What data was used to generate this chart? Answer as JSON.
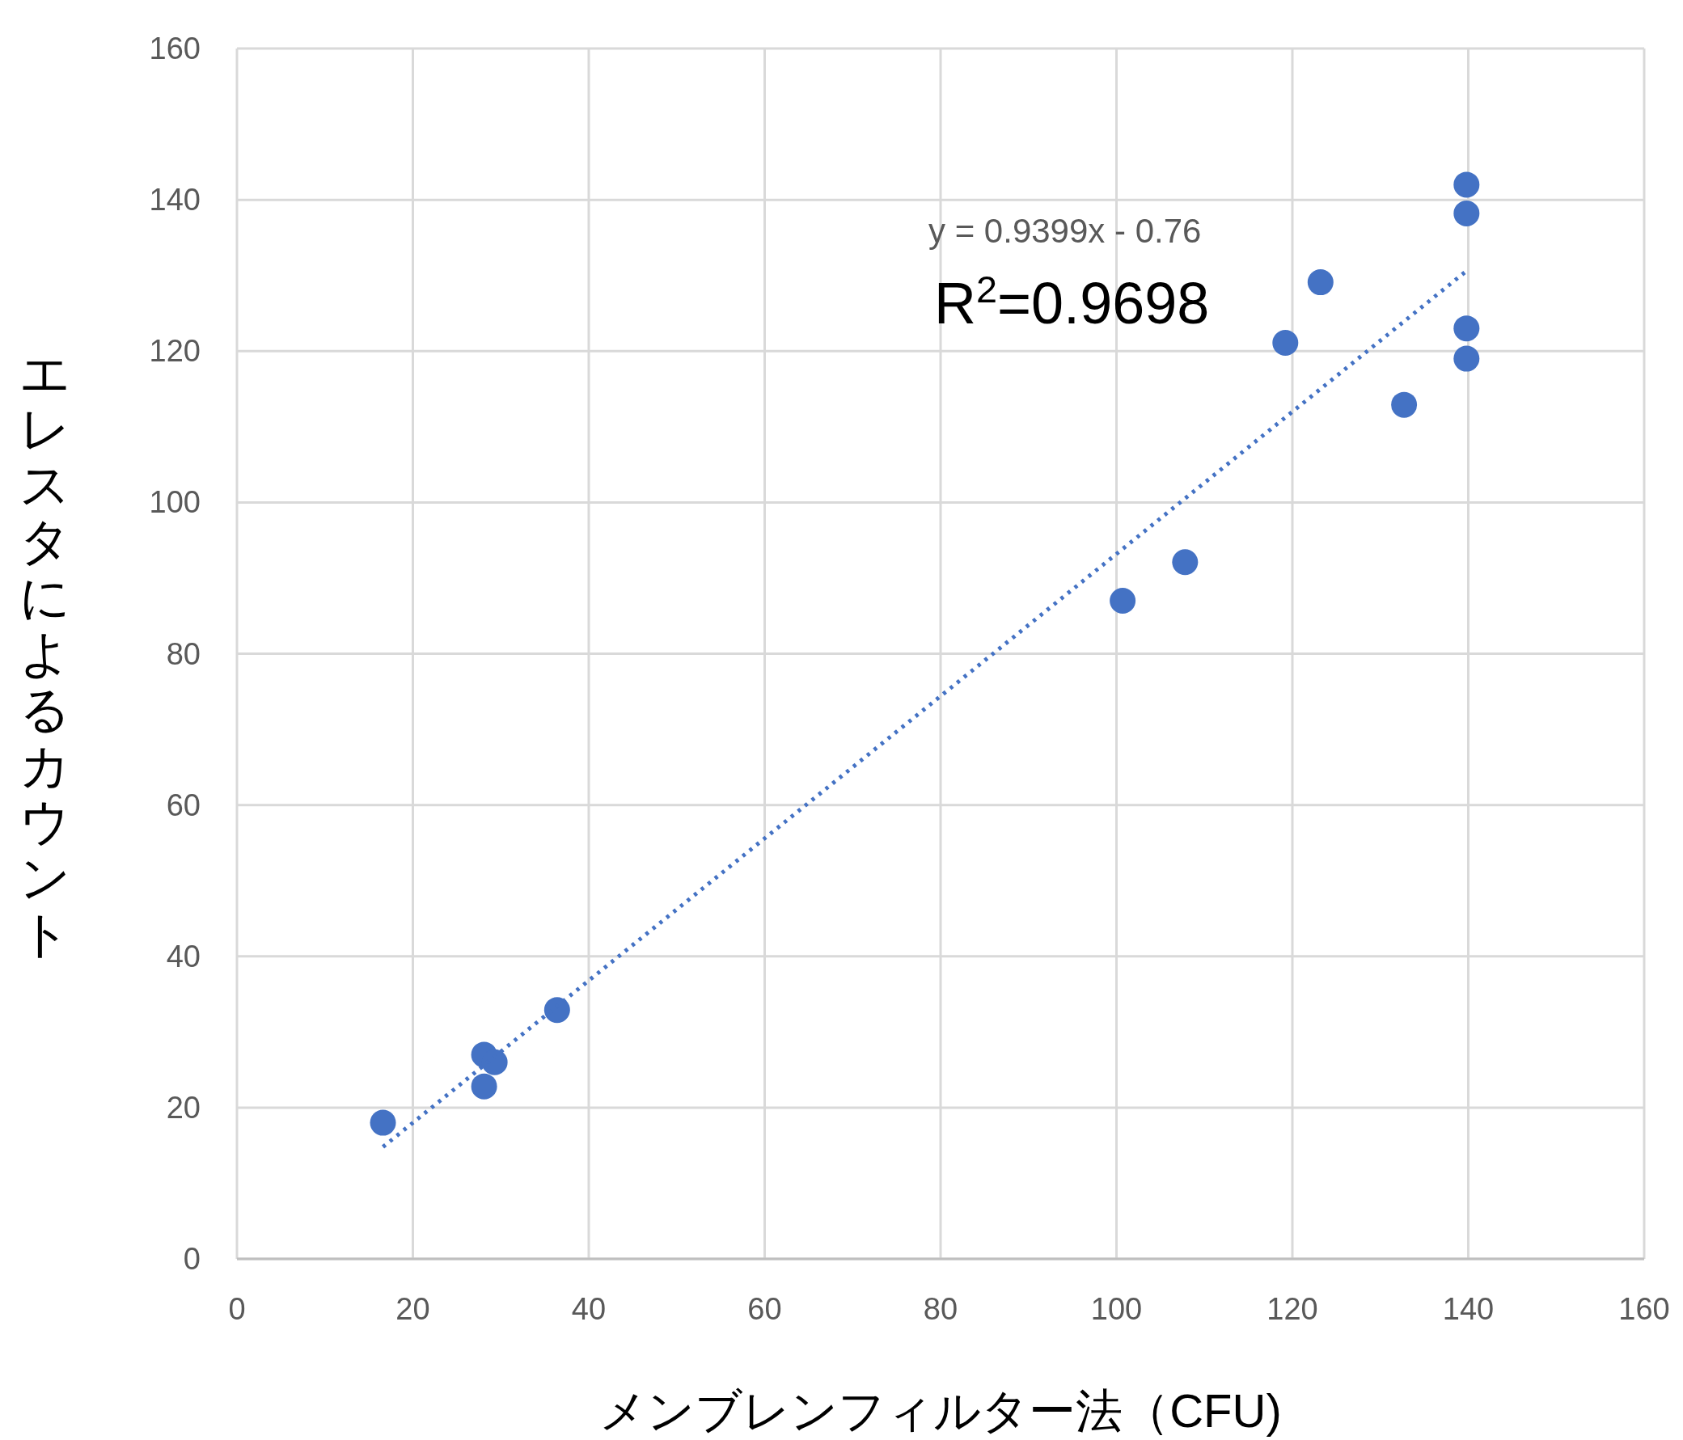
{
  "chart_data": {
    "type": "scatter",
    "xlabel": "メンブレンフィルター法（CFU)",
    "ylabel": "エレスタによるカウント",
    "xlim": [
      0,
      160
    ],
    "ylim": [
      0,
      160
    ],
    "xticks": [
      0,
      20,
      40,
      60,
      80,
      100,
      120,
      140,
      160
    ],
    "yticks": [
      0,
      20,
      40,
      60,
      80,
      100,
      120,
      140,
      160
    ],
    "grid": true,
    "series": [
      {
        "color": "#4472c4",
        "marker": "circle",
        "x": [
          16.6,
          28.1,
          29.3,
          28.1,
          36.4,
          100.7,
          107.8,
          119.2,
          123.2,
          132.7,
          139.8,
          139.8,
          139.8,
          139.8
        ],
        "values": [
          18.0,
          27.0,
          26.0,
          22.8,
          32.9,
          87.0,
          92.1,
          121.1,
          129.1,
          112.9,
          142.0,
          138.2,
          123.0,
          119.0
        ]
      },
      {
        "type": "line",
        "color": "#4472c4",
        "line_style": "dotted",
        "x": [
          16.6,
          139.8
        ],
        "values": [
          14.8,
          130.6
        ]
      }
    ],
    "annotations": [
      "y = 0.9399x - 0.76",
      "R$^{2}$=0.9698"
    ]
  }
}
